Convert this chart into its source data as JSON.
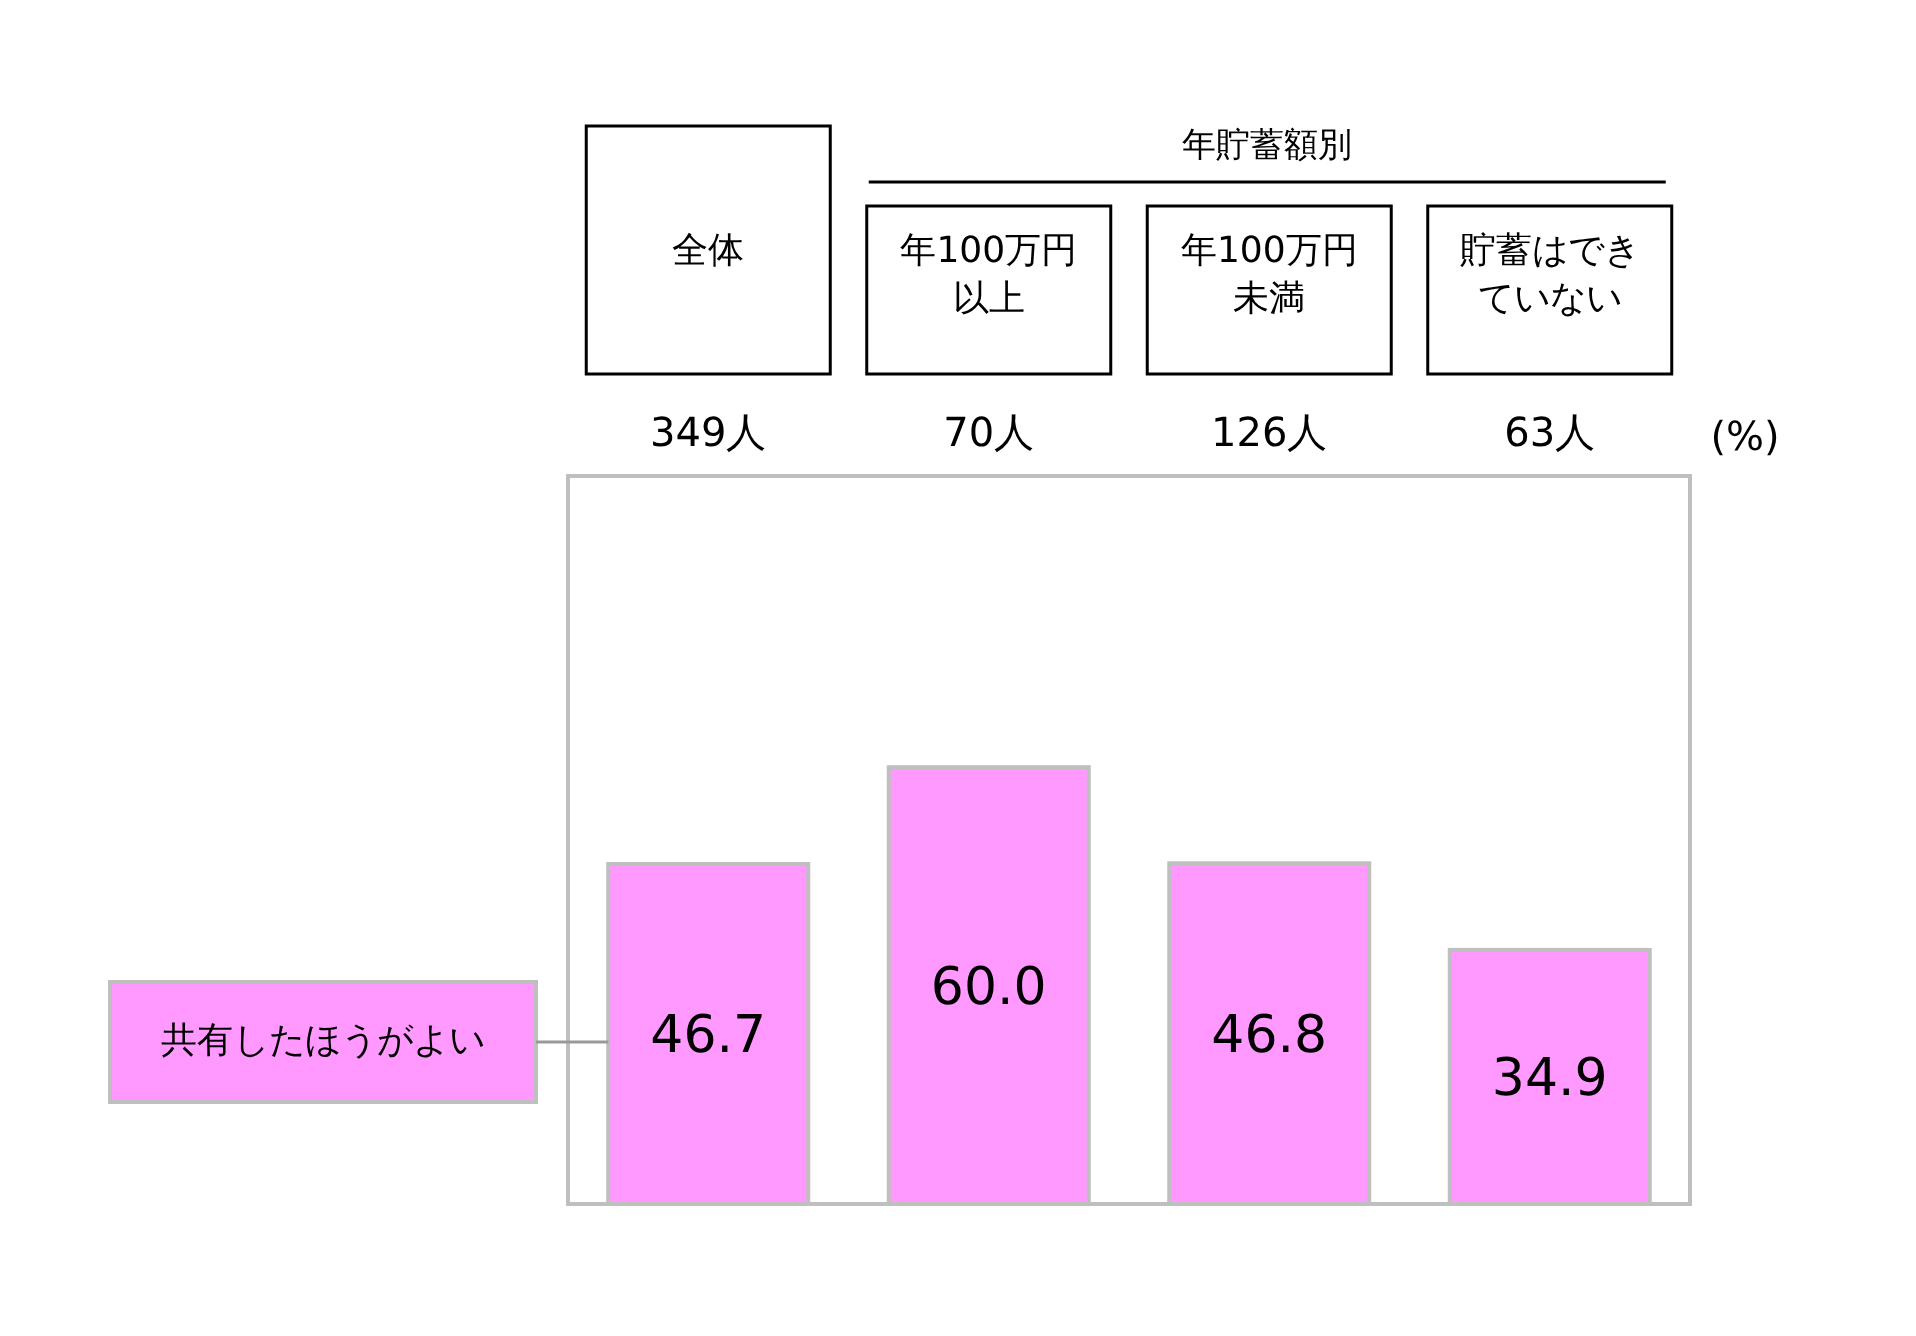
{
  "chart_data": {
    "type": "bar",
    "categories": [
      "全体",
      "年100万円以上",
      "年100万円未満",
      "貯蓄はできていない"
    ],
    "series": [
      {
        "name": "共有したほうがよい",
        "color": "#ff99ff",
        "values": [
          46.7,
          60.0,
          46.8,
          34.9
        ],
        "value_labels": [
          "46.7",
          "60.0",
          "46.8",
          "34.9"
        ]
      }
    ],
    "ylabel": "(%)",
    "legend": "left",
    "annotations": [
      "年貯蓄額別",
      "349人",
      "70人",
      "126人",
      "63人"
    ]
  }
}
